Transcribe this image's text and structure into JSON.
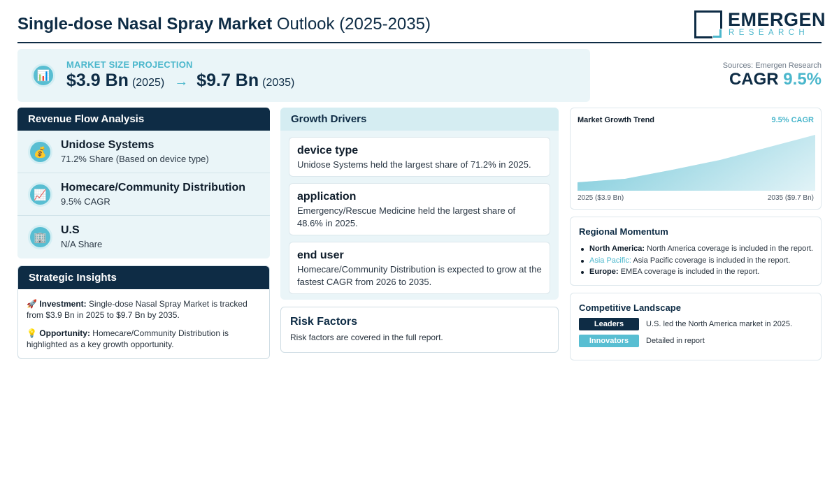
{
  "header": {
    "title_bold": "Single-dose Nasal Spray Market",
    "title_rest": "Outlook (2025-2035)",
    "logo_word": "EMERGEN",
    "logo_sub": "RESEARCH"
  },
  "projection": {
    "label": "MARKET SIZE PROJECTION",
    "icon": "bar-chart-icon",
    "start_value": "$3.9 Bn",
    "start_year": "(2025)",
    "arrow": "→",
    "end_value": "$9.7 Bn",
    "end_year": "(2035)"
  },
  "sources": "Sources: Emergen Research",
  "cagr": {
    "label": "CAGR",
    "value": "9.5%"
  },
  "revenue_flow": {
    "title": "Revenue Flow Analysis",
    "items": [
      {
        "icon": "money-bag-icon",
        "glyph": "💰",
        "title": "Unidose Systems",
        "subtitle": "71.2% Share (Based on device type)"
      },
      {
        "icon": "trend-chart-icon",
        "glyph": "📈",
        "title": "Homecare/Community Distribution",
        "subtitle": "9.5% CAGR"
      },
      {
        "icon": "building-icon",
        "glyph": "🏢",
        "title": "U.S",
        "subtitle": "N/A Share"
      }
    ]
  },
  "strategic": {
    "title": "Strategic Insights",
    "investment_label": "Investment:",
    "investment_text": "Single-dose Nasal Spray Market is tracked from $3.9 Bn in 2025 to $9.7 Bn by 2035.",
    "opportunity_label": "Opportunity:",
    "opportunity_text": "Homecare/Community Distribution is highlighted as a key growth opportunity."
  },
  "growth_drivers": {
    "title": "Growth Drivers",
    "items": [
      {
        "title": "device type",
        "text": "Unidose Systems held the largest share of 71.2% in 2025."
      },
      {
        "title": "application",
        "text": "Emergency/Rescue Medicine held the largest share of 48.6% in 2025."
      },
      {
        "title": "end user",
        "text": "Homecare/Community Distribution is expected to grow at the fastest CAGR from 2026 to 2035."
      }
    ]
  },
  "risk": {
    "title": "Risk Factors",
    "text": "Risk factors are covered in the full report."
  },
  "trend": {
    "title": "Market Growth Trend",
    "cagr_label": "9.5% CAGR",
    "start_label": "2025 ($3.9 Bn)",
    "end_label": "2035 ($9.7 Bn)"
  },
  "regional": {
    "title": "Regional Momentum",
    "items": [
      {
        "region": "North America:",
        "text": "North America coverage is included in the report."
      },
      {
        "region": "Asia Pacific:",
        "text": "Asia Pacific coverage is included in the report."
      },
      {
        "region": "Europe:",
        "text": "EMEA coverage is included in the report."
      }
    ]
  },
  "competitive": {
    "title": "Competitive Landscape",
    "rows": [
      {
        "badge": "Leaders",
        "text": "U.S. led the North America market in 2025."
      },
      {
        "badge": "Innovators",
        "text": "Detailed in report"
      }
    ]
  },
  "colors": {
    "navy": "#0e2c45",
    "accent": "#4bb7cc",
    "panel": "#eaf5f8"
  }
}
